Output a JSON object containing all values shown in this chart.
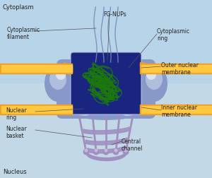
{
  "bg_top": "#b8d4e8",
  "bg_bottom": "#c2d8e6",
  "membrane_outer_color": "#f0a020",
  "membrane_inner_color": "#ffc840",
  "pore_dark_color": "#1a2580",
  "pore_body_color": "#6878b8",
  "lobe_color": "#8898c8",
  "lobe_light": "#b0bedd",
  "lobe_highlight": "#dde4f0",
  "basket_color": "#a090c0",
  "basket_light": "#c8b8dc",
  "dna_color": "#1a7a0a",
  "filament_color": "#7888b8",
  "label_color": "#222222",
  "line_color": "#555555",
  "labels": {
    "cytoplasm": "Cytoplasm",
    "nucleus": "Nucleus",
    "fg_nups": "FG-NUPs",
    "cytoplasmic_filament": "Cytoplasmic\nfilament",
    "cytoplasmic_ring": "Cytoplasmic\nring",
    "outer_nuclear_membrane": "Outer nuclear\nmembrane",
    "nuclear_ring": "Nuclear\nring",
    "nuclear_basket": "Nuclear\nbasket",
    "inner_nuclear_membrane": "Inner nuclear\nmembrane",
    "central_channel": "Central\nchannel"
  },
  "figsize": [
    3.0,
    2.52
  ],
  "dpi": 100
}
